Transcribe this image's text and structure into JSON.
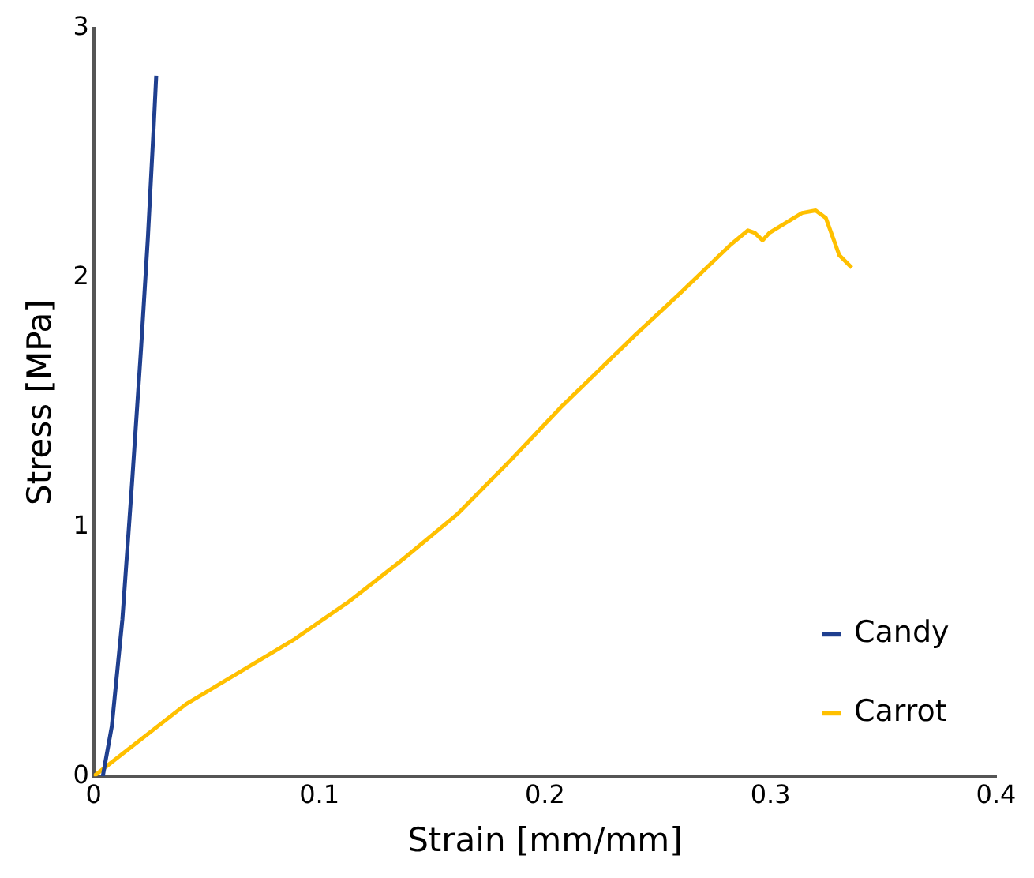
{
  "chart_data": {
    "type": "line",
    "xlabel": "Strain [mm/mm]",
    "ylabel": "Stress [MPa]",
    "xlim": [
      0,
      0.4
    ],
    "xticks": [
      {
        "value": 0,
        "label": "0"
      },
      {
        "value": 0.1,
        "label": "0.1"
      },
      {
        "value": 0.2,
        "label": "0.2"
      },
      {
        "value": 0.3,
        "label": "0.3"
      },
      {
        "value": 0.4,
        "label": "0.4"
      }
    ],
    "ylim": [
      0,
      3
    ],
    "yticks": [
      0,
      1,
      2,
      3
    ],
    "grid": false,
    "legend": "bottom right",
    "marker": "none",
    "line_style": "solid",
    "series": [
      {
        "name": "Candy",
        "color": "#1f3f8f",
        "x": [
          0.004,
          0.008,
          0.0127,
          0.017,
          0.021,
          0.024,
          0.0265,
          0.0277
        ],
        "values": [
          0,
          0.2,
          0.63,
          1.18,
          1.72,
          2.16,
          2.59,
          2.81
        ]
      },
      {
        "name": "Carrot",
        "color": "#ffc000",
        "x": [
          0,
          0.041,
          0.089,
          0.113,
          0.137,
          0.161,
          0.185,
          0.207,
          0.24,
          0.259,
          0.282,
          0.29,
          0.293,
          0.2965,
          0.2995,
          0.314,
          0.32,
          0.3245,
          0.3305,
          0.336
        ],
        "values": [
          0,
          0.29,
          0.55,
          0.7,
          0.87,
          1.05,
          1.27,
          1.48,
          1.77,
          1.93,
          2.13,
          2.19,
          2.18,
          2.15,
          2.18,
          2.26,
          2.27,
          2.24,
          2.09,
          2.04
        ]
      }
    ]
  }
}
